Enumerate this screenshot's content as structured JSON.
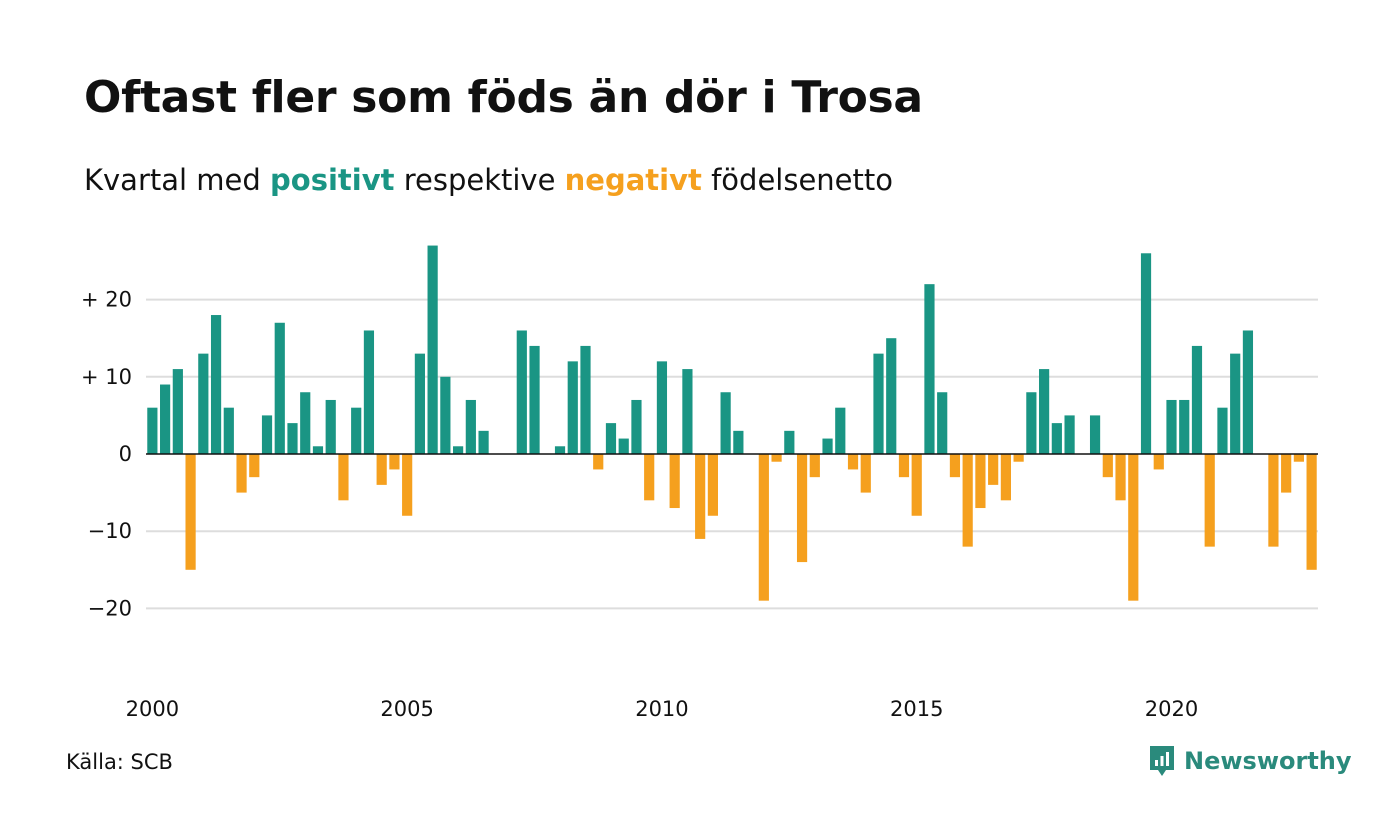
{
  "title": "Oftast fler som föds än dör i Trosa",
  "subtitle": {
    "part1": "Kvartal med ",
    "positive_word": "positivt",
    "part2": " respektive ",
    "negative_word": "negativt",
    "part3": " födelsenetto"
  },
  "source": "Källa: SCB",
  "brand": "Newsworthy",
  "colors": {
    "positive": "#1a9584",
    "negative": "#f5a01e",
    "grid": "#dddddd",
    "zero": "#111111"
  },
  "chart_data": {
    "type": "bar",
    "x_start": "2000 Q1",
    "ylim": [
      -25,
      28
    ],
    "y_ticks": [
      20,
      10,
      0,
      -10,
      -20
    ],
    "y_tick_labels": [
      "+ 20",
      "+ 10",
      "0",
      "−10",
      "−20"
    ],
    "x_tick_labels": [
      "2000",
      "2005",
      "2010",
      "2015",
      "2020"
    ],
    "grid": true,
    "values": [
      6,
      9,
      11,
      -15,
      13,
      18,
      6,
      -5,
      -3,
      5,
      17,
      4,
      8,
      1,
      7,
      -6,
      6,
      16,
      -4,
      -2,
      -8,
      13,
      27,
      10,
      1,
      7,
      3,
      0,
      0,
      16,
      14,
      0,
      1,
      12,
      14,
      -2,
      4,
      2,
      7,
      -6,
      12,
      -7,
      11,
      -11,
      -8,
      8,
      3,
      0,
      -19,
      -1,
      3,
      -14,
      -3,
      2,
      6,
      -2,
      -5,
      13,
      15,
      -3,
      -8,
      22,
      8,
      -3,
      -12,
      -7,
      -4,
      -6,
      -1,
      8,
      11,
      4,
      5,
      0,
      5,
      -3,
      -6,
      -19,
      26,
      -2,
      7,
      7,
      14,
      -12,
      6,
      13,
      16,
      0,
      -12,
      -5,
      -1,
      -15
    ]
  }
}
